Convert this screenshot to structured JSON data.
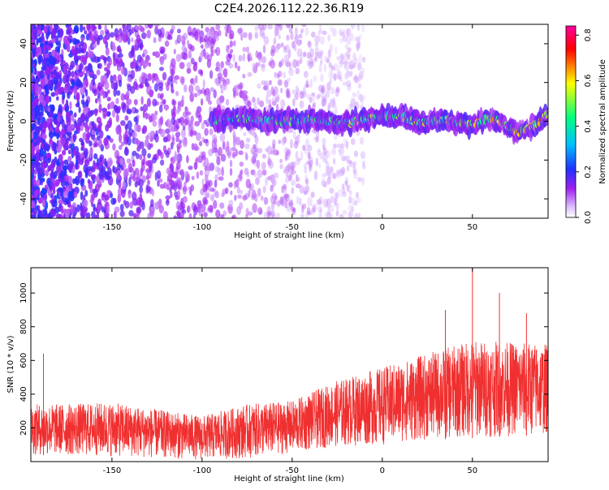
{
  "page": {
    "title": "C2E4.2026.112.22.36.R19"
  },
  "chart_data": [
    {
      "type": "heatmap",
      "xlabel": "Height of straight line (km)",
      "ylabel": "Frequency (Hz)",
      "xlim": [
        -195,
        92
      ],
      "ylim": [
        -50,
        50
      ],
      "xticks": [
        "-150",
        "-100",
        "-50",
        "0",
        "50"
      ],
      "xtick_values": [
        -150,
        -100,
        -50,
        0,
        50
      ],
      "yticks": [
        "-40",
        "-20",
        "0",
        "20",
        "40"
      ],
      "ytick_values": [
        -40,
        -20,
        0,
        20,
        40
      ],
      "colorbar": {
        "label": "Normalized spectral amplitude",
        "range": [
          0,
          0.84
        ],
        "ticks": [
          "0.0",
          "0.2",
          "0.4",
          "0.6",
          "0.8"
        ],
        "tick_values": [
          0,
          0.2,
          0.4,
          0.6,
          0.8
        ],
        "colormap": [
          "#ffffff",
          "#d9b8ff",
          "#a020f0",
          "#2030ff",
          "#00c0ff",
          "#00ff80",
          "#ffff00",
          "#ff0000",
          "#ff00a0"
        ]
      },
      "signal_band": {
        "x_start": -95,
        "x_end": 92,
        "center_hz": [
          [
            -95,
            0
          ],
          [
            -80,
            2
          ],
          [
            -60,
            0
          ],
          [
            -40,
            1
          ],
          [
            -20,
            -1
          ],
          [
            -5,
            2
          ],
          [
            10,
            3
          ],
          [
            20,
            -1
          ],
          [
            35,
            1
          ],
          [
            50,
            -2
          ],
          [
            60,
            2
          ],
          [
            75,
            -6
          ],
          [
            85,
            -2
          ],
          [
            92,
            4
          ]
        ],
        "peak_amplitude": 0.84
      },
      "noise_region": {
        "x_start": -195,
        "x_end": -40
      },
      "grid": false
    },
    {
      "type": "line",
      "xlabel": "Height of straight line (km)",
      "ylabel": "SNR (10 * v/v)",
      "xlim": [
        -195,
        92
      ],
      "ylim": [
        0,
        1150
      ],
      "xticks": [
        "-150",
        "-100",
        "-50",
        "0",
        "50"
      ],
      "xtick_values": [
        -150,
        -100,
        -50,
        0,
        50
      ],
      "yticks": [
        "200",
        "400",
        "600",
        "800",
        "1000"
      ],
      "ytick_values": [
        200,
        400,
        600,
        800,
        1000
      ],
      "color": "#f03030",
      "series": [
        {
          "envelope": [
            {
              "x": -195,
              "low": 40,
              "high": 340
            },
            {
              "x": -150,
              "low": 30,
              "high": 350
            },
            {
              "x": -100,
              "low": 10,
              "high": 270
            },
            {
              "x": -75,
              "low": 20,
              "high": 340
            },
            {
              "x": -50,
              "low": 50,
              "high": 360
            },
            {
              "x": -25,
              "low": 90,
              "high": 480
            },
            {
              "x": 0,
              "low": 100,
              "high": 560
            },
            {
              "x": 25,
              "low": 130,
              "high": 640
            },
            {
              "x": 50,
              "low": 140,
              "high": 720
            },
            {
              "x": 92,
              "low": 160,
              "high": 700
            }
          ],
          "spikes": [
            {
              "x": -188,
              "y": 640
            },
            {
              "x": 50,
              "y": 1150
            },
            {
              "x": 65,
              "y": 1000
            },
            {
              "x": 35,
              "y": 900
            },
            {
              "x": 80,
              "y": 880
            }
          ]
        }
      ],
      "grid": false
    }
  ]
}
